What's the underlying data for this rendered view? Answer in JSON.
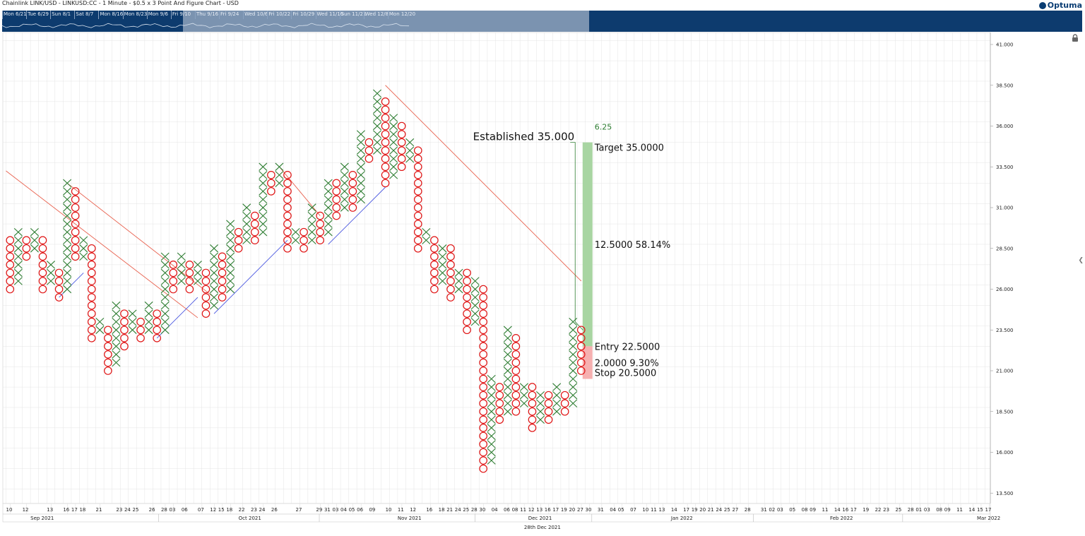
{
  "header": {
    "title": "Chainlink LINK/USD - LINKUSD:CC - 1 Minute - $0.5 x 3 Point And Figure Chart - USD",
    "logo": "Optuma"
  },
  "navigator": {
    "labels": [
      "Mon 6/21",
      "Tue 6/29",
      "Sun 8/1",
      "Sat 8/7",
      "Mon 8/16",
      "Mon 8/23",
      "Mon 9/6",
      "Fri 9/10",
      "Thu 9/16",
      "Fri 9/24",
      "Wed 10/6",
      "Fri 10/22",
      "Fri 10/29",
      "Wed 11/10",
      "Sun 11/21",
      "Wed 12/8",
      "Mon 12/20"
    ]
  },
  "chart_data": {
    "type": "point-and-figure",
    "box_size": 0.5,
    "reversal": 3,
    "ylim": [
      12.5,
      42
    ],
    "y_ticks": [
      "41.000",
      "38.500",
      "36.000",
      "33.500",
      "31.000",
      "28.500",
      "26.000",
      "23.500",
      "21.000",
      "18.500",
      "16.000",
      "13.500"
    ],
    "columns": [
      {
        "type": "O",
        "high": 29,
        "low": 26
      },
      {
        "type": "X",
        "high": 29.5,
        "low": 26.5
      },
      {
        "type": "O",
        "high": 29,
        "low": 28
      },
      {
        "type": "X",
        "high": 29.5,
        "low": 28.5
      },
      {
        "type": "O",
        "high": 29,
        "low": 26
      },
      {
        "type": "X",
        "high": 27.5,
        "low": 26.5
      },
      {
        "type": "O",
        "high": 27,
        "low": 25.5
      },
      {
        "type": "X",
        "high": 32.5,
        "low": 26
      },
      {
        "type": "O",
        "high": 32,
        "low": 28
      },
      {
        "type": "X",
        "high": 29,
        "low": 28
      },
      {
        "type": "O",
        "high": 28.5,
        "low": 23
      },
      {
        "type": "X",
        "high": 24,
        "low": 23.5
      },
      {
        "type": "O",
        "high": 23.5,
        "low": 21
      },
      {
        "type": "X",
        "high": 25,
        "low": 21.5
      },
      {
        "type": "O",
        "high": 24.5,
        "low": 22.5
      },
      {
        "type": "X",
        "high": 24.5,
        "low": 23.5
      },
      {
        "type": "O",
        "high": 24,
        "low": 23
      },
      {
        "type": "X",
        "high": 25,
        "low": 23.5
      },
      {
        "type": "O",
        "high": 24.5,
        "low": 23
      },
      {
        "type": "X",
        "high": 28,
        "low": 23.5
      },
      {
        "type": "O",
        "high": 27.5,
        "low": 26
      },
      {
        "type": "X",
        "high": 28,
        "low": 26.5
      },
      {
        "type": "O",
        "high": 27.5,
        "low": 26
      },
      {
        "type": "X",
        "high": 27.5,
        "low": 26.5
      },
      {
        "type": "O",
        "high": 27,
        "low": 24.5
      },
      {
        "type": "X",
        "high": 28.5,
        "low": 25
      },
      {
        "type": "O",
        "high": 28,
        "low": 25.5
      },
      {
        "type": "X",
        "high": 30,
        "low": 26
      },
      {
        "type": "O",
        "high": 29.5,
        "low": 28.5
      },
      {
        "type": "X",
        "high": 31,
        "low": 29
      },
      {
        "type": "O",
        "high": 30.5,
        "low": 29
      },
      {
        "type": "X",
        "high": 33.5,
        "low": 29.5
      },
      {
        "type": "O",
        "high": 33,
        "low": 32
      },
      {
        "type": "X",
        "high": 33.5,
        "low": 32.5
      },
      {
        "type": "O",
        "high": 33,
        "low": 28.5
      },
      {
        "type": "X",
        "high": 29.5,
        "low": 29
      },
      {
        "type": "O",
        "high": 29.5,
        "low": 28.5
      },
      {
        "type": "X",
        "high": 31,
        "low": 29
      },
      {
        "type": "O",
        "high": 30.5,
        "low": 29
      },
      {
        "type": "X",
        "high": 32.5,
        "low": 29.5
      },
      {
        "type": "O",
        "high": 32.5,
        "low": 30.5
      },
      {
        "type": "X",
        "high": 33.5,
        "low": 31
      },
      {
        "type": "O",
        "high": 33,
        "low": 31
      },
      {
        "type": "X",
        "high": 35.5,
        "low": 31.5
      },
      {
        "type": "O",
        "high": 35,
        "low": 34
      },
      {
        "type": "X",
        "high": 38,
        "low": 34.5
      },
      {
        "type": "O",
        "high": 37.5,
        "low": 32.5
      },
      {
        "type": "X",
        "high": 36.5,
        "low": 33
      },
      {
        "type": "O",
        "high": 36,
        "low": 33.5
      },
      {
        "type": "X",
        "high": 35,
        "low": 34
      },
      {
        "type": "O",
        "high": 34.5,
        "low": 28.5
      },
      {
        "type": "X",
        "high": 29.5,
        "low": 29
      },
      {
        "type": "O",
        "high": 29,
        "low": 26
      },
      {
        "type": "X",
        "high": 28.5,
        "low": 26.5
      },
      {
        "type": "O",
        "high": 28.5,
        "low": 25.5
      },
      {
        "type": "X",
        "high": 27,
        "low": 26
      },
      {
        "type": "O",
        "high": 27,
        "low": 23.5
      },
      {
        "type": "X",
        "high": 26.5,
        "low": 24
      },
      {
        "type": "O",
        "high": 26,
        "low": 15
      },
      {
        "type": "X",
        "high": 20.5,
        "low": 15.5
      },
      {
        "type": "O",
        "high": 20,
        "low": 18
      },
      {
        "type": "X",
        "high": 23.5,
        "low": 18.5
      },
      {
        "type": "O",
        "high": 23,
        "low": 18.5
      },
      {
        "type": "X",
        "high": 20,
        "low": 19
      },
      {
        "type": "O",
        "high": 20,
        "low": 17.5
      },
      {
        "type": "X",
        "high": 19.5,
        "low": 18
      },
      {
        "type": "O",
        "high": 19.5,
        "low": 18
      },
      {
        "type": "X",
        "high": 20,
        "low": 18.5
      },
      {
        "type": "O",
        "high": 19.5,
        "low": 18.5
      },
      {
        "type": "X",
        "high": 24,
        "low": 19
      },
      {
        "type": "O",
        "high": 23.5,
        "low": 21
      }
    ],
    "trendlines": [
      {
        "color": "#e8604d",
        "from": [
          0,
          33.25
        ],
        "to": [
          23.5,
          24.25
        ]
      },
      {
        "color": "#e8604d",
        "from": [
          7.5,
          32.5
        ],
        "to": [
          25.5,
          25.5
        ]
      },
      {
        "color": "#e8604d",
        "from": [
          33.5,
          33.5
        ],
        "to": [
          38.5,
          30.5
        ]
      },
      {
        "color": "#e8604d",
        "from": [
          46.5,
          38.5
        ],
        "to": [
          70.5,
          26.5
        ]
      },
      {
        "color": "#4a57e0",
        "from": [
          6.5,
          25.5
        ],
        "to": [
          9.5,
          27.0
        ]
      },
      {
        "color": "#4a57e0",
        "from": [
          18.5,
          23.0
        ],
        "to": [
          23.5,
          25.5
        ]
      },
      {
        "color": "#4a57e0",
        "from": [
          25.5,
          24.5
        ],
        "to": [
          34.5,
          29.0
        ]
      },
      {
        "color": "#4a57e0",
        "from": [
          39.5,
          28.75
        ],
        "to": [
          46.5,
          32.25
        ]
      }
    ],
    "projection": {
      "established_label": "Established 35.000",
      "count_label": "6.25",
      "target_label": "Target  35.0000",
      "reward_label": "12.5000  58.14%",
      "entry_label": "Entry  22.5000",
      "risk_label": "2.0000  9.30%",
      "stop_label": "Stop  20.5000",
      "target": 35.0,
      "entry": 22.5,
      "stop": 20.5,
      "reward_color": "#a8d5a2",
      "risk_color": "#f6b0b0"
    },
    "x_ticks": [
      {
        "col": 0,
        "label": "10"
      },
      {
        "col": 2,
        "label": "12"
      },
      {
        "col": 5,
        "label": "13"
      },
      {
        "col": 7,
        "label": "16"
      },
      {
        "col": 8,
        "label": "17"
      },
      {
        "col": 9,
        "label": "18"
      },
      {
        "col": 11,
        "label": "21"
      },
      {
        "col": 13.5,
        "label": "23"
      },
      {
        "col": 14.5,
        "label": "24"
      },
      {
        "col": 15.5,
        "label": "25"
      },
      {
        "col": 17.5,
        "label": "26"
      },
      {
        "col": 19,
        "label": "28"
      },
      {
        "col": 20,
        "label": "03"
      },
      {
        "col": 21.5,
        "label": "06"
      },
      {
        "col": 23.5,
        "label": "07"
      },
      {
        "col": 25,
        "label": "12"
      },
      {
        "col": 26,
        "label": "15"
      },
      {
        "col": 27,
        "label": "18"
      },
      {
        "col": 28.5,
        "label": "22"
      },
      {
        "col": 30,
        "label": "23"
      },
      {
        "col": 31,
        "label": "24"
      },
      {
        "col": 32.5,
        "label": "26"
      },
      {
        "col": 35.5,
        "label": "27"
      },
      {
        "col": 38,
        "label": "29"
      },
      {
        "col": 39,
        "label": "31"
      },
      {
        "col": 40,
        "label": "03"
      },
      {
        "col": 41,
        "label": "04"
      },
      {
        "col": 42,
        "label": "05"
      },
      {
        "col": 43,
        "label": "06"
      },
      {
        "col": 44.5,
        "label": "09"
      },
      {
        "col": 46.5,
        "label": "10"
      },
      {
        "col": 48,
        "label": "11"
      },
      {
        "col": 49.5,
        "label": "12"
      },
      {
        "col": 51.5,
        "label": "16"
      },
      {
        "col": 53,
        "label": "18"
      },
      {
        "col": 54,
        "label": "21"
      },
      {
        "col": 55,
        "label": "24"
      },
      {
        "col": 56,
        "label": "25"
      },
      {
        "col": 57,
        "label": "28"
      },
      {
        "col": 58,
        "label": "30"
      },
      {
        "col": 59.5,
        "label": "04"
      },
      {
        "col": 61,
        "label": "06"
      },
      {
        "col": 62,
        "label": "08"
      },
      {
        "col": 63,
        "label": "11"
      },
      {
        "col": 64,
        "label": "12"
      },
      {
        "col": 65,
        "label": "13"
      },
      {
        "col": 66,
        "label": "16"
      },
      {
        "col": 67,
        "label": "17"
      },
      {
        "col": 68,
        "label": "19"
      },
      {
        "col": 69,
        "label": "20"
      },
      {
        "col": 70,
        "label": "27"
      },
      {
        "col": 71,
        "label": "30"
      },
      {
        "col": 72.5,
        "label": "31"
      },
      {
        "col": 74,
        "label": "04"
      },
      {
        "col": 75,
        "label": "05"
      },
      {
        "col": 76.5,
        "label": "07"
      },
      {
        "col": 78,
        "label": "10"
      },
      {
        "col": 79,
        "label": "11"
      },
      {
        "col": 80,
        "label": "13"
      },
      {
        "col": 81.5,
        "label": "14"
      },
      {
        "col": 83,
        "label": "17"
      },
      {
        "col": 84,
        "label": "19"
      },
      {
        "col": 85,
        "label": "20"
      },
      {
        "col": 86,
        "label": "21"
      },
      {
        "col": 87,
        "label": "24"
      },
      {
        "col": 88,
        "label": "25"
      },
      {
        "col": 89,
        "label": "27"
      },
      {
        "col": 90.5,
        "label": "28"
      },
      {
        "col": 92.5,
        "label": "31"
      },
      {
        "col": 93.5,
        "label": "02"
      },
      {
        "col": 94.5,
        "label": "03"
      },
      {
        "col": 96,
        "label": "05"
      },
      {
        "col": 97.5,
        "label": "08"
      },
      {
        "col": 98.5,
        "label": "09"
      },
      {
        "col": 100,
        "label": "11"
      },
      {
        "col": 101.5,
        "label": "14"
      },
      {
        "col": 102.5,
        "label": "16"
      },
      {
        "col": 103.5,
        "label": "17"
      },
      {
        "col": 105,
        "label": "19"
      },
      {
        "col": 106.5,
        "label": "22"
      },
      {
        "col": 107.5,
        "label": "23"
      },
      {
        "col": 109,
        "label": "25"
      },
      {
        "col": 110.5,
        "label": "28"
      },
      {
        "col": 111.5,
        "label": "01"
      },
      {
        "col": 112.5,
        "label": "03"
      },
      {
        "col": 114,
        "label": "08"
      },
      {
        "col": 115,
        "label": "09"
      },
      {
        "col": 116.5,
        "label": "11"
      },
      {
        "col": 118,
        "label": "14"
      },
      {
        "col": 119,
        "label": "15"
      },
      {
        "col": 120,
        "label": "17"
      }
    ],
    "months": [
      {
        "col": 3,
        "label": "Sep 2021"
      },
      {
        "col": 28.5,
        "label": "Oct 2021"
      },
      {
        "col": 48,
        "label": "Nov 2021"
      },
      {
        "col": 64,
        "label": "Dec 2021"
      },
      {
        "col": 81.5,
        "label": "Jan 2022"
      },
      {
        "col": 101,
        "label": "Feb 2022"
      },
      {
        "col": 119,
        "label": "Mar 2022"
      }
    ],
    "month_boundaries": [
      18.7,
      38.4,
      57.5,
      71.8,
      91.6,
      109.9,
      121
    ],
    "cursor_label": "28th Dec 2021",
    "colors": {
      "x": "#2e7d32",
      "o": "#e01414",
      "grid": "#e4e4e4"
    }
  }
}
